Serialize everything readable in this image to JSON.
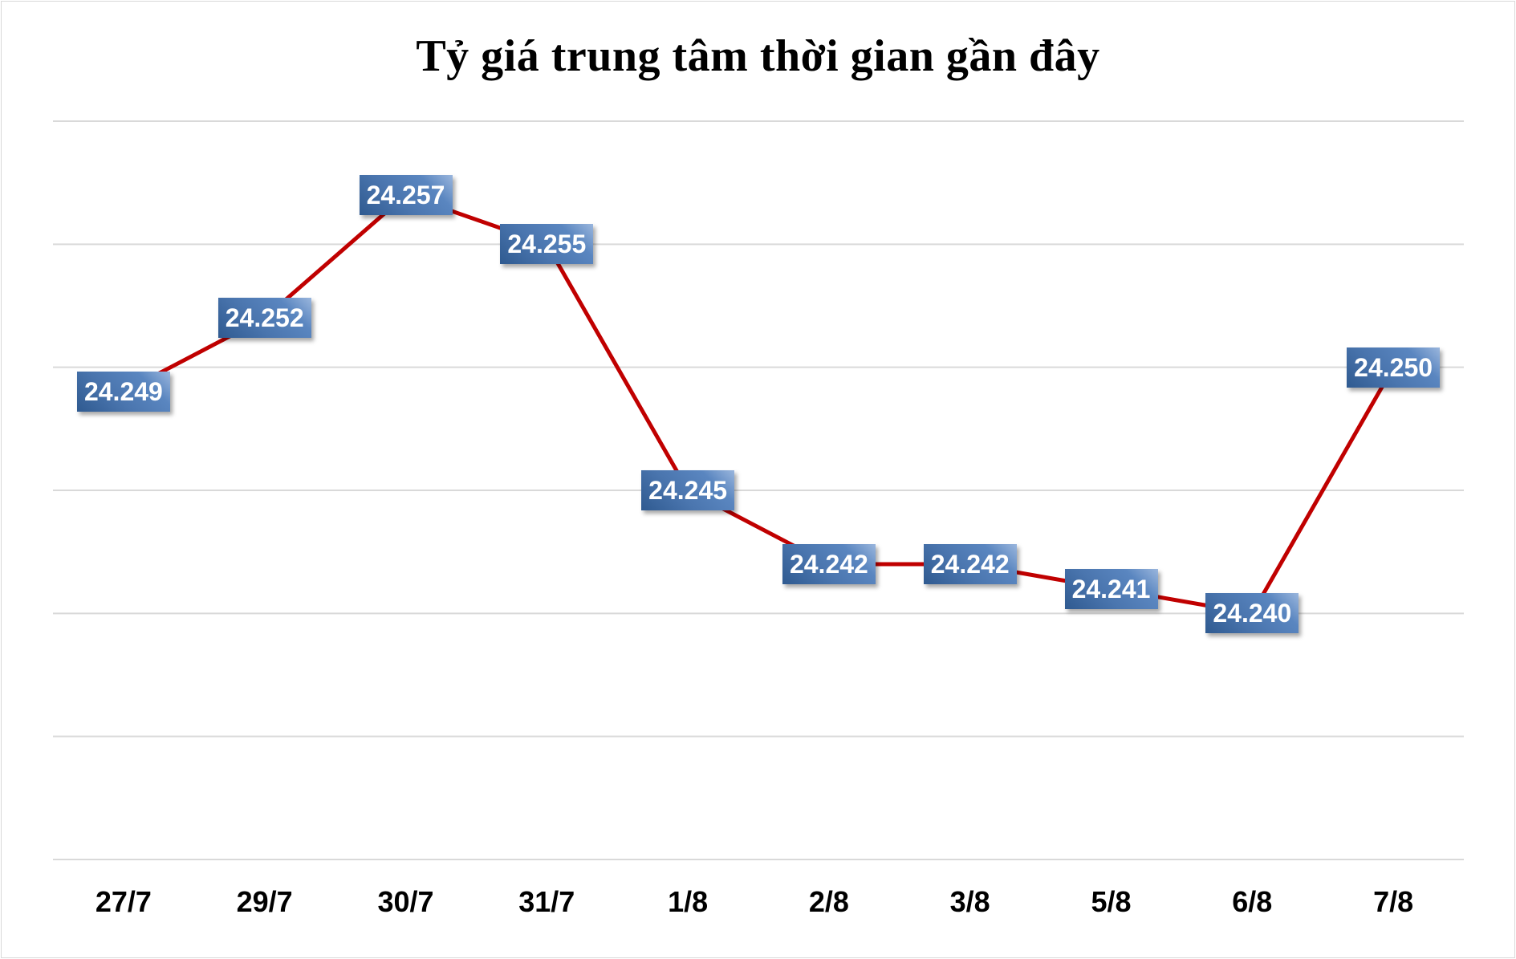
{
  "chart_data": {
    "type": "line",
    "title": "Tỷ giá trung tâm thời gian gần đây",
    "xlabel": "",
    "ylabel": "",
    "categories": [
      "27/7",
      "29/7",
      "30/7",
      "31/7",
      "1/8",
      "2/8",
      "3/8",
      "5/8",
      "6/8",
      "7/8"
    ],
    "series": [
      {
        "name": "Tỷ giá trung tâm",
        "values": [
          24.249,
          24.252,
          24.257,
          24.255,
          24.245,
          24.242,
          24.242,
          24.241,
          24.24,
          24.25
        ],
        "labels": [
          "24.249",
          "24.252",
          "24.257",
          "24.255",
          "24.245",
          "24.242",
          "24.242",
          "24.241",
          "24.240",
          "24.250"
        ],
        "color": "#c00000"
      }
    ],
    "ylim": [
      24.23,
      24.26
    ],
    "y_gridlines": [
      24.26,
      24.255,
      24.25,
      24.245,
      24.24,
      24.235,
      24.23
    ],
    "grid": true,
    "legend": "none",
    "label_box_color": "#4a75ae"
  }
}
